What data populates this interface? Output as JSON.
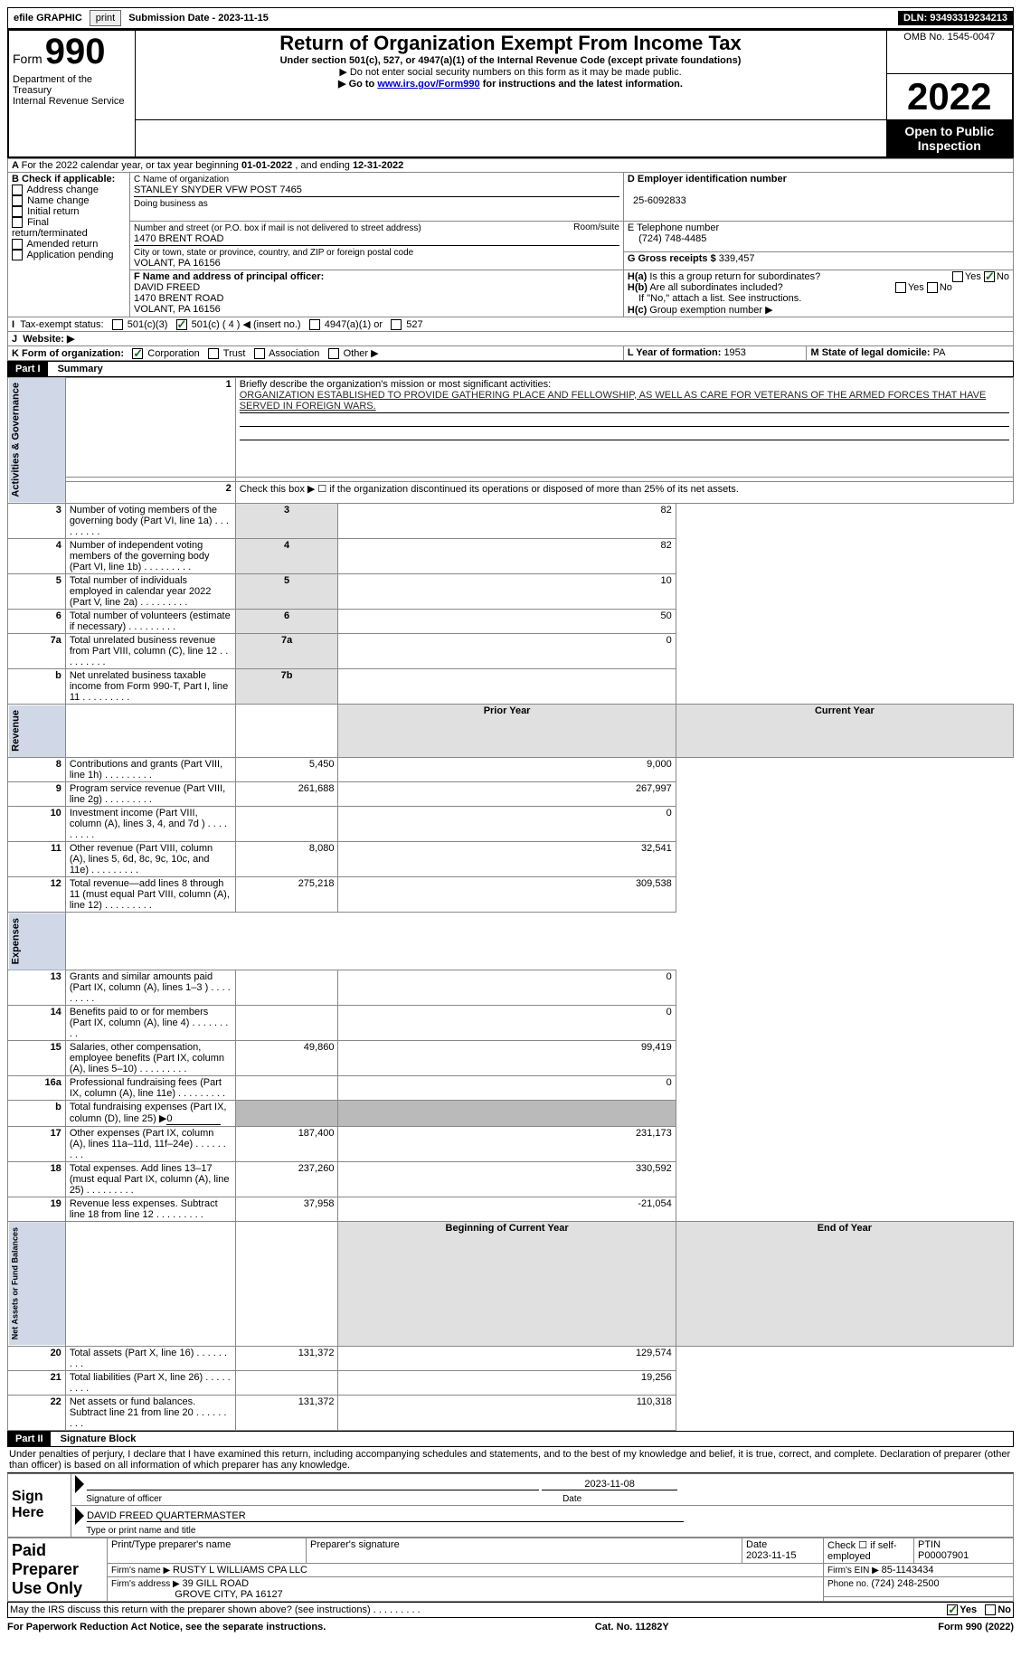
{
  "topbar": {
    "efile_label": "efile GRAPHIC",
    "print_btn": "print",
    "submission_label": "Submission Date - 2023-11-15",
    "dln_label": "DLN: 93493319234213"
  },
  "header": {
    "form_prefix": "Form",
    "form_number": "990",
    "title": "Return of Organization Exempt From Income Tax",
    "subtitle": "Under section 501(c), 527, or 4947(a)(1) of the Internal Revenue Code (except private foundations)",
    "ssn_warn": "Do not enter social security numbers on this form as it may be made public.",
    "goto_prefix": "Go to ",
    "goto_link": "www.irs.gov/Form990",
    "goto_suffix": " for instructions and the latest information.",
    "dept": "Department of the Treasury",
    "irs": "Internal Revenue Service",
    "omb": "OMB No. 1545-0047",
    "year": "2022",
    "open": "Open to Public Inspection"
  },
  "sectionA": {
    "cal_year_prefix": "For the 2022 calendar year, or tax year beginning ",
    "begin": "01-01-2022",
    "mid": " , and ending ",
    "end": "12-31-2022",
    "b_label": "B Check if applicable:",
    "opts": {
      "addr": "Address change",
      "name": "Name change",
      "init": "Initial return",
      "final": "Final return/terminated",
      "amend": "Amended return",
      "app": "Application pending"
    },
    "c_label": "C Name of organization",
    "org_name": "STANLEY SNYDER VFW POST 7465",
    "dba_label": "Doing business as",
    "addr_label": "Number and street (or P.O. box if mail is not delivered to street address)",
    "room_label": "Room/suite",
    "addr": "1470 BRENT ROAD",
    "city_label": "City or town, state or province, country, and ZIP or foreign postal code",
    "city": "VOLANT, PA  16156",
    "d_label": "D Employer identification number",
    "ein": "25-6092833",
    "e_label": "E Telephone number",
    "phone": "(724) 748-4485",
    "g_label": "G Gross receipts $ ",
    "gross": "339,457",
    "f_label": "F  Name and address of principal officer:",
    "officer_name": "DAVID FREED",
    "officer_addr1": "1470 BRENT ROAD",
    "officer_addr2": "VOLANT, PA  16156",
    "ha_label": "Is this a group return for subordinates?",
    "hb_label": "Are all subordinates included?",
    "h_note": "If \"No,\" attach a list. See instructions.",
    "hc_label": "Group exemption number ▶",
    "yes": "Yes",
    "no": "No",
    "i_label": "Tax-exempt status:",
    "i_501c3": "501(c)(3)",
    "i_501c": "501(c) ( 4 ) ◀ (insert no.)",
    "i_4947": "4947(a)(1) or",
    "i_527": "527",
    "j_label": "Website: ▶",
    "k_label": "K Form of organization:",
    "k_corp": "Corporation",
    "k_trust": "Trust",
    "k_assoc": "Association",
    "k_other": "Other ▶",
    "l_label": "L Year of formation: ",
    "l_val": "1953",
    "m_label": "M State of legal domicile: ",
    "m_val": "PA"
  },
  "partI": {
    "tag": "Part I",
    "title": "Summary",
    "q1": "Briefly describe the organization's mission or most significant activities:",
    "mission": "ORGANIZATION ESTABLISHED TO PROVIDE GATHERING PLACE AND FELLOWSHIP, AS WELL AS CARE FOR VETERANS OF THE ARMED FORCES THAT HAVE SERVED IN FOREIGN WARS.",
    "q2": "Check this box ▶ ☐  if the organization discontinued its operations or disposed of more than 25% of its net assets.",
    "sections": {
      "act": "Activities & Governance",
      "rev": "Revenue",
      "exp": "Expenses",
      "net": "Net Assets or Fund Balances"
    },
    "headers": {
      "prior": "Prior Year",
      "current": "Current Year",
      "boy": "Beginning of Current Year",
      "eoy": "End of Year"
    },
    "lines": [
      {
        "n": "3",
        "t": "Number of voting members of the governing body (Part VI, line 1a)",
        "ref": "3",
        "cur": "82"
      },
      {
        "n": "4",
        "t": "Number of independent voting members of the governing body (Part VI, line 1b)",
        "ref": "4",
        "cur": "82"
      },
      {
        "n": "5",
        "t": "Total number of individuals employed in calendar year 2022 (Part V, line 2a)",
        "ref": "5",
        "cur": "10"
      },
      {
        "n": "6",
        "t": "Total number of volunteers (estimate if necessary)",
        "ref": "6",
        "cur": "50"
      },
      {
        "n": "7a",
        "t": "Total unrelated business revenue from Part VIII, column (C), line 12",
        "ref": "7a",
        "cur": "0"
      },
      {
        "n": "b",
        "na": true,
        "t": "Net unrelated business taxable income from Form 990-T, Part I, line 11",
        "ref": "7b",
        "cur": ""
      }
    ],
    "rev_lines": [
      {
        "n": "8",
        "t": "Contributions and grants (Part VIII, line 1h)",
        "p": "5,450",
        "c": "9,000"
      },
      {
        "n": "9",
        "t": "Program service revenue (Part VIII, line 2g)",
        "p": "261,688",
        "c": "267,997"
      },
      {
        "n": "10",
        "t": "Investment income (Part VIII, column (A), lines 3, 4, and 7d )",
        "p": "",
        "c": "0"
      },
      {
        "n": "11",
        "t": "Other revenue (Part VIII, column (A), lines 5, 6d, 8c, 9c, 10c, and 11e)",
        "p": "8,080",
        "c": "32,541"
      },
      {
        "n": "12",
        "t": "Total revenue—add lines 8 through 11 (must equal Part VIII, column (A), line 12)",
        "p": "275,218",
        "c": "309,538"
      }
    ],
    "exp_lines": [
      {
        "n": "13",
        "t": "Grants and similar amounts paid (Part IX, column (A), lines 1–3 )",
        "p": "",
        "c": "0"
      },
      {
        "n": "14",
        "t": "Benefits paid to or for members (Part IX, column (A), line 4)",
        "p": "",
        "c": "0"
      },
      {
        "n": "15",
        "t": "Salaries, other compensation, employee benefits (Part IX, column (A), lines 5–10)",
        "p": "49,860",
        "c": "99,419"
      },
      {
        "n": "16a",
        "t": "Professional fundraising fees (Part IX, column (A), line 11e)",
        "p": "",
        "c": "0"
      },
      {
        "n": "b",
        "t": "Total fundraising expenses (Part IX, column (D), line 25) ▶",
        "special": true,
        "val": "0"
      },
      {
        "n": "17",
        "t": "Other expenses (Part IX, column (A), lines 11a–11d, 11f–24e)",
        "p": "187,400",
        "c": "231,173"
      },
      {
        "n": "18",
        "t": "Total expenses. Add lines 13–17 (must equal Part IX, column (A), line 25)",
        "p": "237,260",
        "c": "330,592"
      },
      {
        "n": "19",
        "t": "Revenue less expenses. Subtract line 18 from line 12",
        "p": "37,958",
        "c": "-21,054"
      }
    ],
    "net_lines": [
      {
        "n": "20",
        "t": "Total assets (Part X, line 16)",
        "p": "131,372",
        "c": "129,574"
      },
      {
        "n": "21",
        "t": "Total liabilities (Part X, line 26)",
        "p": "",
        "c": "19,256"
      },
      {
        "n": "22",
        "t": "Net assets or fund balances. Subtract line 21 from line 20",
        "p": "131,372",
        "c": "110,318"
      }
    ]
  },
  "partII": {
    "tag": "Part II",
    "title": "Signature Block",
    "decl": "Under penalties of perjury, I declare that I have examined this return, including accompanying schedules and statements, and to the best of my knowledge and belief, it is true, correct, and complete. Declaration of preparer (other than officer) is based on all information of which preparer has any knowledge.",
    "sign_here": "Sign Here",
    "sig_officer": "Signature of officer",
    "sig_date": "2023-11-08",
    "date_lbl": "Date",
    "officer_name": "DAVID FREED QUARTERMASTER",
    "type_name": "Type or print name and title",
    "paid": "Paid Preparer Use Only",
    "prep_name_lbl": "Print/Type preparer's name",
    "prep_sig_lbl": "Preparer's signature",
    "prep_date_lbl": "Date",
    "prep_date": "2023-11-15",
    "self_emp": "Check ☐ if self-employed",
    "ptin_lbl": "PTIN",
    "ptin": "P00007901",
    "firm_name_lbl": "Firm's name    ▶ ",
    "firm_name": "RUSTY L WILLIAMS CPA LLC",
    "firm_ein_lbl": "Firm's EIN ▶ ",
    "firm_ein": "85-1143434",
    "firm_addr_lbl": "Firm's address ▶ ",
    "firm_addr1": "39 GILL ROAD",
    "firm_addr2": "GROVE CITY, PA  16127",
    "firm_phone_lbl": "Phone no. ",
    "firm_phone": "(724) 248-2500",
    "discuss": "May the IRS discuss this return with the preparer shown above? (see instructions)"
  },
  "footer": {
    "left": "For Paperwork Reduction Act Notice, see the separate instructions.",
    "mid": "Cat. No. 11282Y",
    "right": "Form 990 (2022)"
  }
}
